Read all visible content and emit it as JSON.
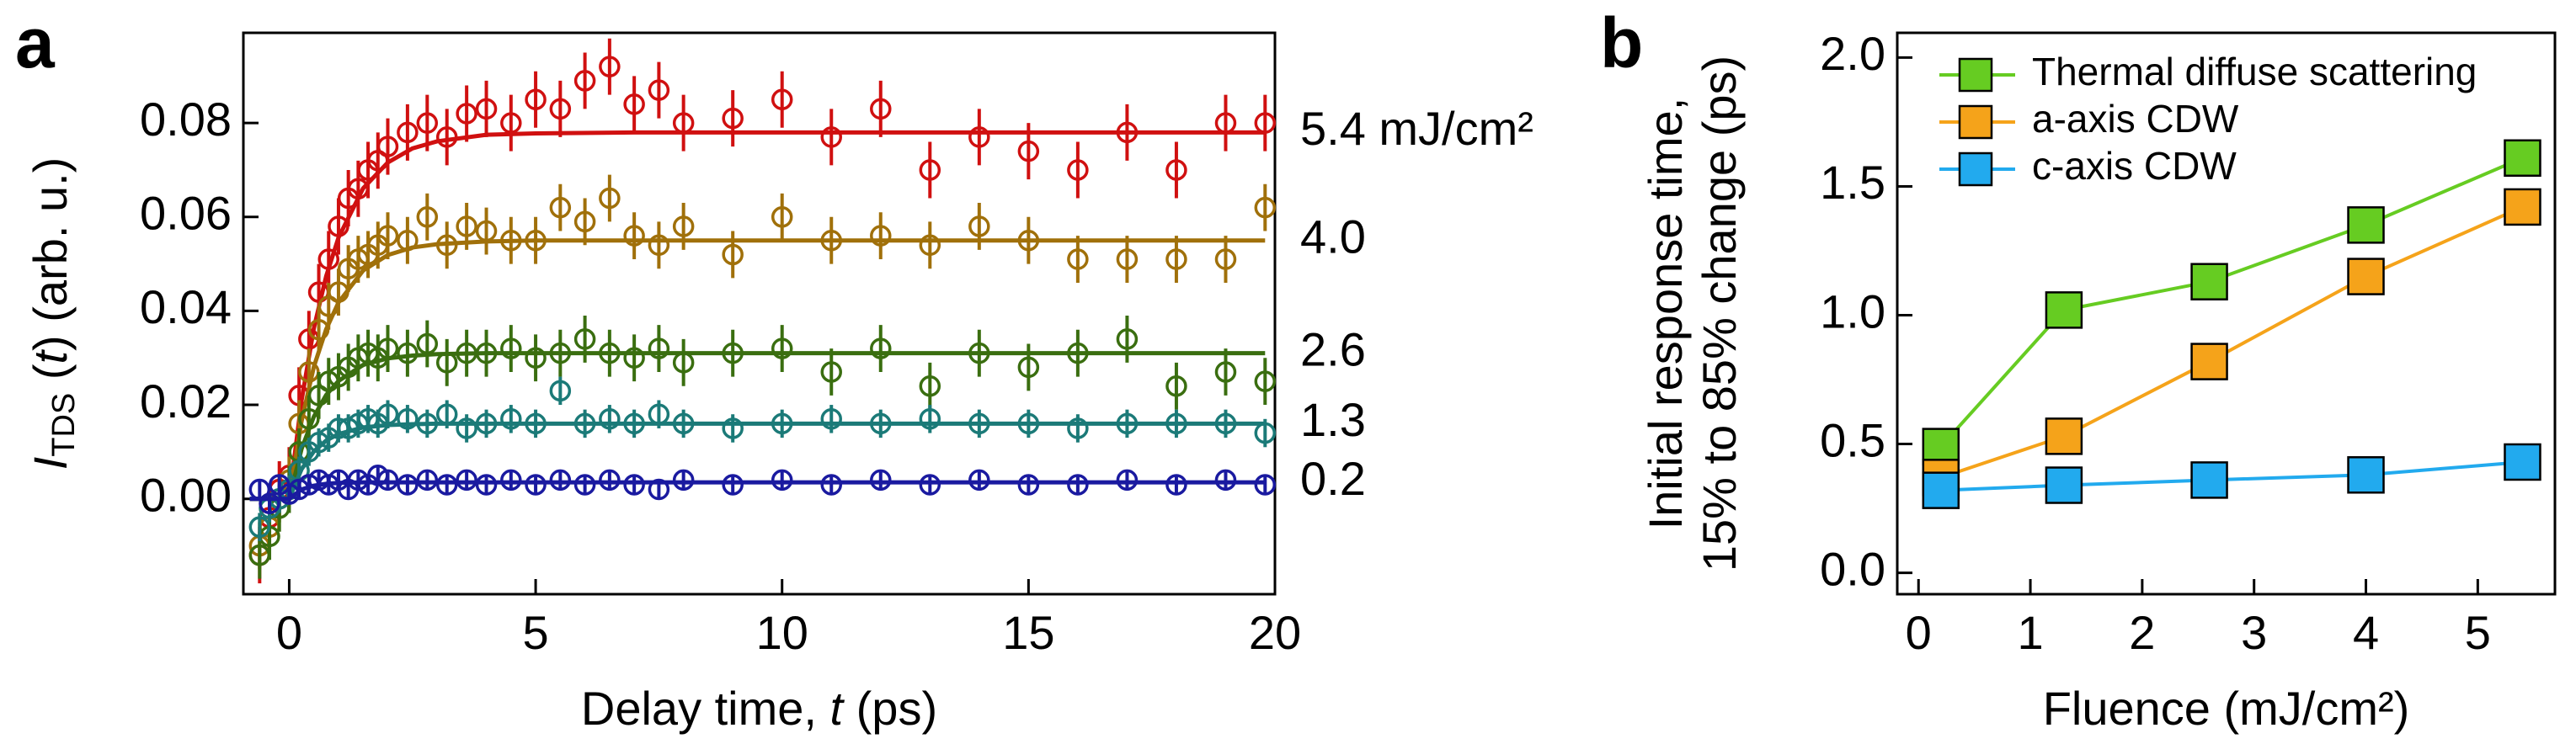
{
  "chart_data": [
    {
      "type": "scatter",
      "panel_label": "a",
      "xlabel": [
        "Delay time, ",
        "t",
        " (ps)"
      ],
      "ylabel": [
        "I",
        "TDS",
        " (",
        "t",
        ") (arb. u.)"
      ],
      "xlim": [
        -0.93,
        20
      ],
      "ylim": [
        -0.0203,
        0.0992
      ],
      "xticks": [
        0,
        5,
        10,
        15,
        20
      ],
      "yticks": [
        {
          "value": 0,
          "label": "0.00"
        },
        {
          "value": 0.02,
          "label": "0.02"
        },
        {
          "value": 0.04,
          "label": "0.04"
        },
        {
          "value": 0.06,
          "label": "0.06"
        },
        {
          "value": 0.08,
          "label": "0.08"
        }
      ],
      "x": [
        -0.6,
        -0.4,
        -0.2,
        0,
        0.2,
        0.4,
        0.6,
        0.8,
        1.0,
        1.2,
        1.4,
        1.6,
        1.8,
        2.0,
        2.4,
        2.8,
        3.2,
        3.6,
        4.0,
        4.5,
        5.0,
        5.5,
        6.0,
        6.5,
        7.0,
        7.5,
        8.0,
        9.0,
        10.0,
        11.0,
        12.0,
        13.0,
        14.0,
        15.0,
        16.0,
        17.0,
        18.0,
        19.0,
        19.8
      ],
      "fit_x": [
        -0.8,
        0,
        0.25,
        0.5,
        0.75,
        1,
        1.5,
        2,
        2.5,
        3,
        4,
        5,
        7,
        10,
        15,
        19.8
      ],
      "series": [
        {
          "name": "5.4 mJ/cm²",
          "color": "#d01010",
          "error": 0.006,
          "values": [
            -0.012,
            -0.004,
            0.002,
            0.005,
            0.022,
            0.034,
            0.044,
            0.051,
            0.058,
            0.064,
            0.066,
            0.07,
            0.072,
            0.075,
            0.078,
            0.08,
            0.077,
            0.082,
            0.083,
            0.08,
            0.085,
            0.083,
            0.089,
            0.092,
            0.084,
            0.087,
            0.08,
            0.081,
            0.085,
            0.077,
            0.083,
            0.07,
            0.077,
            0.074,
            0.07,
            0.078,
            0.07,
            0.08,
            0.08
          ],
          "fit_values": [
            0,
            0,
            0.0209,
            0.0363,
            0.0474,
            0.0556,
            0.0661,
            0.0716,
            0.0746,
            0.0761,
            0.0775,
            0.0778,
            0.078,
            0.078,
            0.078,
            0.078
          ]
        },
        {
          "name": "4.0",
          "color": "#a0700a",
          "error": 0.005,
          "values": [
            -0.01,
            -0.006,
            0.0,
            0.004,
            0.016,
            0.027,
            0.036,
            0.041,
            0.044,
            0.049,
            0.051,
            0.052,
            0.054,
            0.056,
            0.055,
            0.06,
            0.054,
            0.058,
            0.057,
            0.055,
            0.055,
            0.062,
            0.059,
            0.064,
            0.056,
            0.054,
            0.058,
            0.052,
            0.06,
            0.055,
            0.056,
            0.054,
            0.058,
            0.055,
            0.051,
            0.051,
            0.051,
            0.051,
            0.062
          ],
          "fit_values": [
            0,
            0,
            0.0165,
            0.0281,
            0.0361,
            0.0418,
            0.0486,
            0.0519,
            0.0535,
            0.0542,
            0.0548,
            0.055,
            0.055,
            0.055,
            0.055,
            0.055
          ]
        },
        {
          "name": "2.6",
          "color": "#3a6e10",
          "error": 0.005,
          "values": [
            -0.012,
            -0.008,
            -0.002,
            0.002,
            0.01,
            0.017,
            0.022,
            0.025,
            0.026,
            0.028,
            0.03,
            0.031,
            0.03,
            0.032,
            0.031,
            0.033,
            0.029,
            0.031,
            0.031,
            0.032,
            0.03,
            0.031,
            0.034,
            0.031,
            0.03,
            0.032,
            0.029,
            0.031,
            0.032,
            0.027,
            0.032,
            0.024,
            0.031,
            0.028,
            0.031,
            0.034,
            0.024,
            0.027,
            0.025
          ],
          "fit_values": [
            0,
            0,
            0.0106,
            0.0175,
            0.0221,
            0.0251,
            0.0285,
            0.0299,
            0.0305,
            0.0308,
            0.031,
            0.031,
            0.031,
            0.031,
            0.031,
            0.031
          ]
        },
        {
          "name": "1.3",
          "color": "#1b7a78",
          "error": 0.003,
          "values": [
            -0.006,
            -0.002,
            0.0,
            0.002,
            0.006,
            0.01,
            0.012,
            0.013,
            0.015,
            0.015,
            0.016,
            0.017,
            0.016,
            0.018,
            0.017,
            0.016,
            0.018,
            0.015,
            0.016,
            0.017,
            0.016,
            0.023,
            0.016,
            0.017,
            0.016,
            0.018,
            0.016,
            0.015,
            0.016,
            0.017,
            0.016,
            0.017,
            0.016,
            0.016,
            0.015,
            0.016,
            0.016,
            0.016,
            0.014
          ],
          "fit_values": [
            0,
            0,
            0.0063,
            0.0101,
            0.0124,
            0.0138,
            0.0152,
            0.0157,
            0.0159,
            0.016,
            0.016,
            0.016,
            0.016,
            0.016,
            0.016,
            0.016
          ]
        },
        {
          "name": "0.2",
          "color": "#1a1aa0",
          "error": 0.002,
          "values": [
            0.002,
            -0.001,
            0.003,
            0.001,
            0.002,
            0.003,
            0.004,
            0.003,
            0.004,
            0.002,
            0.004,
            0.003,
            0.005,
            0.004,
            0.003,
            0.004,
            0.003,
            0.004,
            0.003,
            0.004,
            0.003,
            0.004,
            0.003,
            0.004,
            0.003,
            0.002,
            0.004,
            0.003,
            0.004,
            0.003,
            0.004,
            0.003,
            0.004,
            0.003,
            0.003,
            0.004,
            0.003,
            0.004,
            0.003
          ],
          "fit_values": [
            0,
            0,
            0.002,
            0.0028,
            0.0032,
            0.0034,
            0.0035,
            0.0035,
            0.0035,
            0.0035,
            0.0035,
            0.0035,
            0.0035,
            0.0035,
            0.0035,
            0.0035
          ]
        }
      ]
    },
    {
      "type": "line",
      "panel_label": "b",
      "xlabel": "Fluence (mJ/cm²)",
      "ylabel": [
        "Initial response time,",
        "15% to 85% change (ps)"
      ],
      "xlim": [
        -0.19,
        5.69
      ],
      "ylim": [
        -0.083,
        2.096
      ],
      "xticks": [
        0,
        1,
        2,
        3,
        4,
        5
      ],
      "yticks": [
        {
          "value": 0,
          "label": "0.0"
        },
        {
          "value": 0.5,
          "label": "0.5"
        },
        {
          "value": 1,
          "label": "1.0"
        },
        {
          "value": 1.5,
          "label": "1.5"
        },
        {
          "value": 2,
          "label": "2.0"
        }
      ],
      "legend": "upper left",
      "x": [
        0.2,
        1.3,
        2.6,
        4.0,
        5.4
      ],
      "series": [
        {
          "name": "Thermal diffuse scattering",
          "color": "#66cc22",
          "values": [
            0.49,
            1.02,
            1.13,
            1.35,
            1.61
          ]
        },
        {
          "name": "a-axis CDW",
          "color": "#f5a31a",
          "values": [
            0.37,
            0.53,
            0.82,
            1.15,
            1.42
          ]
        },
        {
          "name": "c-axis CDW",
          "color": "#22aaee",
          "values": [
            0.32,
            0.34,
            0.36,
            0.38,
            0.43
          ]
        }
      ]
    }
  ]
}
